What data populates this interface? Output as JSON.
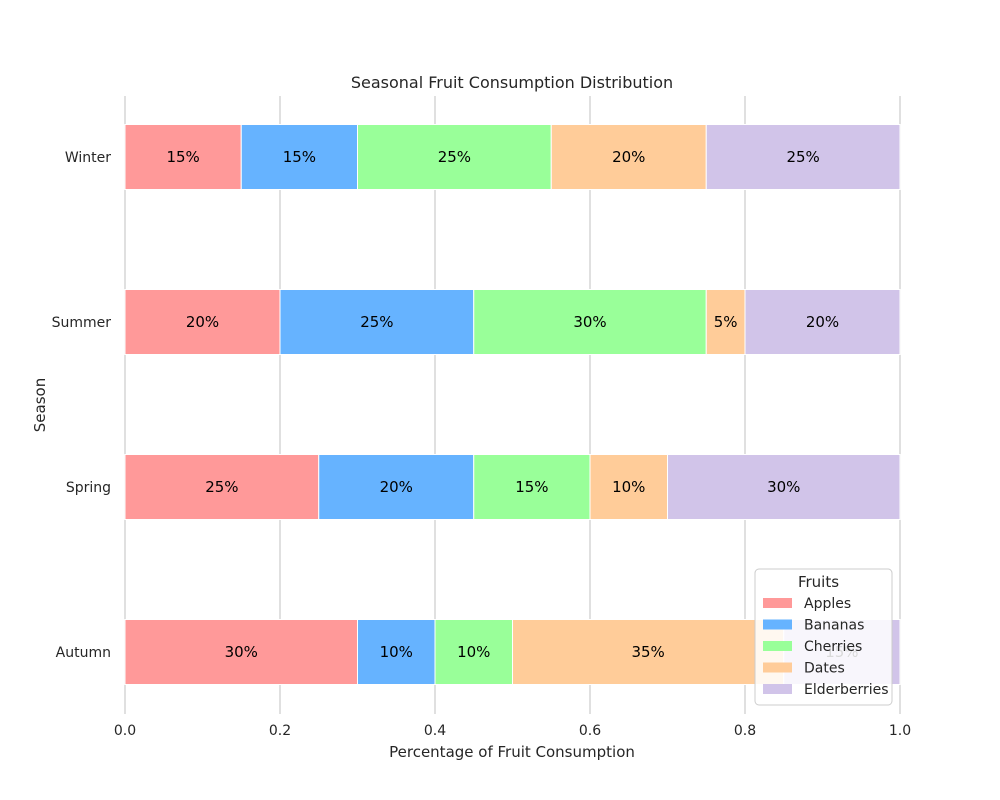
{
  "chart_data": {
    "type": "bar",
    "orientation": "horizontal",
    "stacked": true,
    "title": "Seasonal Fruit Consumption Distribution",
    "xlabel": "Percentage of Fruit Consumption",
    "ylabel": "Season",
    "xlim": [
      0,
      1
    ],
    "xticks": [
      "0.0",
      "0.2",
      "0.4",
      "0.6",
      "0.8",
      "1.0"
    ],
    "categories": [
      "Winter",
      "Summer",
      "Spring",
      "Autumn"
    ],
    "series": [
      {
        "name": "Apples",
        "color": "#ff9999",
        "values": [
          0.15,
          0.2,
          0.25,
          0.3
        ],
        "labels": [
          "15%",
          "20%",
          "25%",
          "30%"
        ]
      },
      {
        "name": "Bananas",
        "color": "#66b3ff",
        "values": [
          0.15,
          0.25,
          0.2,
          0.1
        ],
        "labels": [
          "15%",
          "25%",
          "20%",
          "10%"
        ]
      },
      {
        "name": "Cherries",
        "color": "#99ff99",
        "values": [
          0.25,
          0.3,
          0.15,
          0.1
        ],
        "labels": [
          "25%",
          "30%",
          "15%",
          "10%"
        ]
      },
      {
        "name": "Dates",
        "color": "#ffcc99",
        "values": [
          0.2,
          0.05,
          0.1,
          0.35
        ],
        "labels": [
          "20%",
          "5%",
          "10%",
          "35%"
        ]
      },
      {
        "name": "Elderberries",
        "color": "#d1c4e9",
        "values": [
          0.25,
          0.2,
          0.3,
          0.15
        ],
        "labels": [
          "25%",
          "20%",
          "30%",
          "15%"
        ]
      }
    ],
    "grid": "x",
    "legend": {
      "title": "Fruits",
      "position": "lower-right"
    }
  }
}
